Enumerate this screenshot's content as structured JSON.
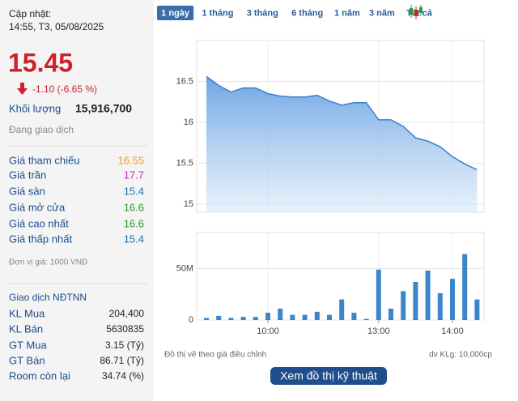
{
  "info": {
    "update_label": "Cập nhật:",
    "update_time": "14:55, T3, 05/08/2025",
    "price": "15.45",
    "change": "-1.10 (-6.65 %)",
    "volume_label": "Khối lượng",
    "volume": "15,916,700",
    "status": "Đang giao dịch"
  },
  "prices": [
    {
      "label": "Giá tham chiếu",
      "value": "16.55",
      "color": "#f0a020"
    },
    {
      "label": "Giá trần",
      "value": "17.7",
      "color": "#d020c8"
    },
    {
      "label": "Giá sàn",
      "value": "15.4",
      "color": "#1a6fb0"
    },
    {
      "label": "Giá mở cửa",
      "value": "16.6",
      "color": "#2a9a2a"
    },
    {
      "label": "Giá cao nhất",
      "value": "16.6",
      "color": "#2a9a2a"
    },
    {
      "label": "Giá thấp nhất",
      "value": "15.4",
      "color": "#1a6fb0"
    }
  ],
  "unit_note": "Đơn vị giá: 1000 VNĐ",
  "foreign": {
    "title": "Giao dịch NĐTNN",
    "rows": [
      {
        "label": "KL Mua",
        "value": "204,400"
      },
      {
        "label": "KL Bán",
        "value": "5630835"
      },
      {
        "label": "GT Mua",
        "value": "3.15 (Tỷ)"
      },
      {
        "label": "GT Bán",
        "value": "86.71 (Tỷ)"
      },
      {
        "label": "Room còn lại",
        "value": "34.74 (%)"
      }
    ]
  },
  "tabs": [
    "1 ngày",
    "1 tháng",
    "3 tháng",
    "6 tháng",
    "1 năm",
    "3 năm",
    "Tất cả"
  ],
  "active_tab": 0,
  "chart_data": [
    {
      "type": "area",
      "color": "#3a7fd0",
      "x": [
        "09:10",
        "09:20",
        "09:30",
        "09:40",
        "09:50",
        "10:00",
        "10:10",
        "10:20",
        "10:30",
        "10:40",
        "10:50",
        "11:00",
        "11:10",
        "11:20",
        "13:00",
        "13:10",
        "13:20",
        "13:30",
        "13:40",
        "13:50",
        "14:00",
        "14:10",
        "14:20"
      ],
      "values": [
        16.56,
        16.45,
        16.37,
        16.42,
        16.42,
        16.35,
        16.32,
        16.31,
        16.31,
        16.33,
        16.26,
        16.21,
        16.24,
        16.24,
        16.03,
        16.03,
        15.95,
        15.81,
        15.77,
        15.7,
        15.58,
        15.49,
        15.42
      ],
      "ylim": [
        14.9,
        17
      ],
      "yticks": [
        15,
        15.5,
        16,
        16.5
      ],
      "grid": true
    },
    {
      "type": "bar",
      "color": "#3a86c8",
      "x": [
        "09:10",
        "09:20",
        "09:30",
        "09:40",
        "09:50",
        "10:00",
        "10:10",
        "10:20",
        "10:30",
        "10:40",
        "10:50",
        "11:00",
        "11:10",
        "11:20",
        "13:00",
        "13:10",
        "13:20",
        "13:30",
        "13:40",
        "13:50",
        "14:00",
        "14:10",
        "14:20"
      ],
      "values": [
        2000000,
        4000000,
        2000000,
        3000000,
        3000000,
        7000000,
        11000000,
        5000000,
        5000000,
        8000000,
        5000000,
        20000000,
        7000000,
        1000000,
        49000000,
        11000000,
        28000000,
        37000000,
        48000000,
        26000000,
        40000000,
        64000000,
        20000000
      ],
      "ylim": [
        0,
        85000000
      ],
      "yticks": [
        0,
        {
          "value": 50000000,
          "label": "50M"
        }
      ],
      "xticks": [
        "10:00",
        "13:00",
        "14:00"
      ],
      "grid": true
    }
  ],
  "footnote_left": "Đồ thị vẽ theo giá điều chỉnh",
  "footnote_right": "dv KLg: 10,000cp",
  "button": "Xem đồ thị kỹ thuật"
}
